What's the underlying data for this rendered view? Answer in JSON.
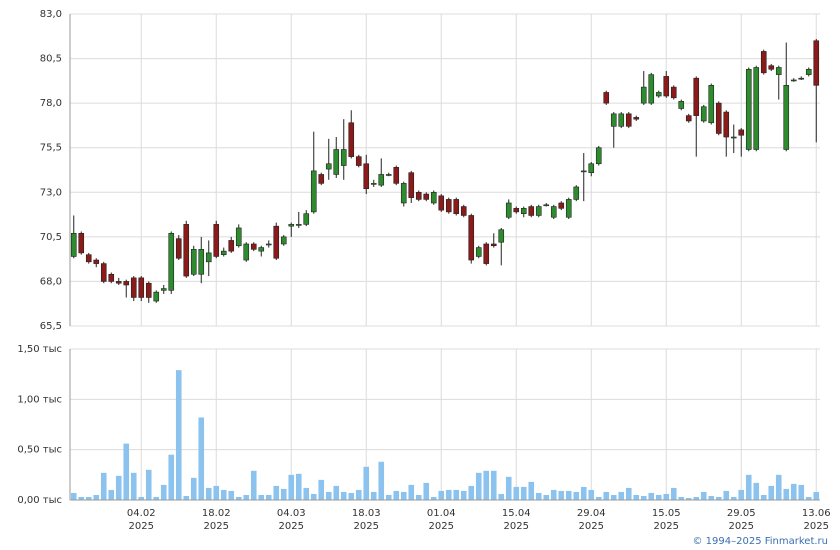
{
  "chart_data": [
    {
      "type": "candlestick",
      "up_color": "#2e8b2e",
      "down_color": "#8b1a1a",
      "open": [
        69.4,
        70.7,
        69.5,
        69.2,
        69.0,
        68.4,
        68.0,
        68.0,
        68.2,
        68.2,
        67.9,
        66.9,
        67.5,
        67.5,
        70.4,
        71.2,
        68.4,
        68.4,
        69.1,
        71.2,
        69.5,
        70.3,
        70.0,
        69.2,
        70.1,
        69.7,
        70.1,
        71.1,
        70.1,
        71.1,
        71.2,
        71.2,
        71.9,
        74.0,
        74.3,
        74.0,
        74.5,
        76.9,
        75.0,
        74.6,
        73.5,
        73.4,
        74.0,
        74.4,
        72.4,
        74.1,
        73.0,
        72.9,
        72.4,
        72.8,
        72.6,
        72.6,
        72.2,
        71.7,
        69.4,
        70.1,
        70.1,
        70.2,
        71.6,
        72.1,
        71.8,
        72.2,
        71.7,
        72.3,
        71.6,
        72.4,
        71.6,
        72.6,
        74.2,
        74.1,
        74.6,
        78.6,
        76.7,
        76.7,
        77.4,
        77.2,
        78.0,
        78.0,
        78.4,
        79.5,
        78.9,
        77.7,
        77.3,
        79.4,
        77.0,
        76.9,
        78.0,
        77.5,
        76.1,
        76.5,
        75.4,
        75.4,
        80.9,
        80.1,
        79.6,
        75.4,
        79.3,
        79.4,
        79.6,
        81.5
      ],
      "high": [
        71.7,
        70.8,
        69.6,
        69.3,
        69.1,
        68.5,
        68.2,
        68.1,
        68.3,
        68.3,
        68.0,
        67.5,
        67.8,
        70.8,
        70.6,
        71.4,
        70.0,
        70.5,
        70.3,
        71.4,
        69.9,
        70.5,
        71.2,
        70.2,
        70.2,
        70.0,
        70.3,
        71.3,
        70.6,
        71.3,
        71.9,
        72.0,
        76.4,
        74.1,
        76.0,
        76.1,
        77.1,
        77.6,
        75.1,
        75.1,
        73.7,
        74.9,
        74.1,
        74.5,
        73.6,
        74.2,
        73.1,
        73.0,
        73.1,
        72.9,
        72.7,
        72.7,
        72.3,
        71.8,
        70.0,
        70.2,
        70.7,
        71.0,
        72.6,
        72.2,
        72.2,
        72.3,
        72.3,
        72.4,
        72.3,
        72.5,
        72.7,
        73.4,
        75.2,
        74.7,
        75.6,
        78.7,
        77.5,
        77.5,
        77.5,
        77.3,
        79.8,
        79.7,
        78.7,
        79.8,
        79.0,
        78.2,
        77.4,
        79.5,
        77.9,
        79.1,
        78.1,
        77.6,
        76.8,
        76.6,
        80.0,
        80.1,
        81.0,
        80.2,
        80.1,
        81.4,
        79.4,
        79.5,
        80.0,
        81.6
      ],
      "low": [
        69.3,
        69.5,
        69.0,
        68.8,
        67.9,
        67.9,
        67.8,
        67.1,
        66.9,
        66.9,
        66.8,
        66.8,
        67.3,
        67.3,
        69.2,
        68.2,
        68.3,
        67.9,
        68.3,
        69.3,
        69.4,
        69.6,
        69.9,
        69.1,
        69.7,
        69.4,
        69.9,
        69.2,
        70.0,
        70.5,
        71.0,
        71.1,
        71.8,
        73.4,
        73.7,
        73.8,
        73.7,
        74.9,
        74.4,
        72.9,
        73.3,
        73.3,
        73.9,
        73.4,
        72.2,
        72.4,
        72.5,
        72.5,
        72.3,
        71.9,
        71.8,
        71.7,
        71.6,
        69.0,
        69.3,
        68.9,
        69.9,
        68.9,
        71.5,
        71.8,
        71.6,
        71.6,
        71.6,
        72.2,
        71.5,
        72.0,
        71.5,
        72.5,
        72.5,
        73.9,
        74.5,
        77.9,
        75.5,
        76.6,
        76.6,
        77.0,
        77.9,
        77.9,
        78.3,
        78.3,
        78.2,
        77.6,
        76.9,
        75.0,
        76.9,
        76.8,
        76.2,
        75.0,
        75.2,
        75.0,
        75.3,
        75.3,
        79.6,
        79.8,
        78.2,
        75.3,
        79.2,
        79.3,
        79.5,
        75.8
      ],
      "close": [
        70.7,
        69.6,
        69.1,
        69.0,
        68.0,
        68.0,
        67.9,
        67.8,
        67.1,
        67.1,
        67.1,
        67.4,
        67.6,
        70.7,
        69.3,
        68.3,
        69.8,
        69.8,
        69.6,
        69.4,
        69.7,
        69.7,
        71.0,
        70.1,
        69.8,
        69.9,
        70.1,
        69.3,
        70.5,
        71.2,
        71.2,
        71.8,
        74.2,
        73.5,
        74.6,
        75.4,
        75.4,
        75.0,
        74.5,
        73.2,
        73.5,
        74.0,
        74.0,
        73.5,
        73.5,
        72.7,
        72.6,
        72.6,
        73.0,
        72.0,
        71.9,
        71.8,
        71.7,
        69.2,
        69.9,
        69.0,
        70.0,
        70.9,
        72.4,
        71.9,
        72.1,
        71.7,
        72.2,
        72.3,
        72.2,
        72.1,
        72.6,
        73.3,
        74.2,
        74.6,
        75.5,
        78.0,
        77.4,
        77.4,
        76.7,
        77.1,
        78.9,
        79.6,
        78.6,
        78.4,
        78.3,
        78.1,
        77.0,
        77.3,
        77.8,
        79.0,
        76.3,
        76.1,
        76.1,
        76.2,
        79.9,
        80.0,
        79.7,
        79.9,
        80.0,
        79.0,
        79.3,
        79.4,
        79.9,
        79.0
      ],
      "ylim": [
        65.5,
        83.0
      ],
      "yticks": [
        {
          "value": 65.5,
          "label": "65,5"
        },
        {
          "value": 68,
          "label": "68,0"
        },
        {
          "value": 70.5,
          "label": "70,5"
        },
        {
          "value": 73,
          "label": "73,0"
        },
        {
          "value": 75.5,
          "label": "75,5"
        },
        {
          "value": 78,
          "label": "78,0"
        },
        {
          "value": 80.5,
          "label": "80,5"
        },
        {
          "value": 83,
          "label": "83,0"
        }
      ],
      "grid": true
    },
    {
      "type": "bar",
      "color": "#8cc3ee",
      "categories": [
        null,
        null,
        null,
        null,
        null,
        null,
        null,
        null,
        null,
        [
          "04.02",
          "2025"
        ],
        null,
        null,
        null,
        null,
        null,
        null,
        null,
        null,
        null,
        [
          "18.02",
          "2025"
        ],
        null,
        null,
        null,
        null,
        null,
        null,
        null,
        null,
        null,
        [
          "04.03",
          "2025"
        ],
        null,
        null,
        null,
        null,
        null,
        null,
        null,
        null,
        null,
        [
          "18.03",
          "2025"
        ],
        null,
        null,
        null,
        null,
        null,
        null,
        null,
        null,
        null,
        [
          "01.04",
          "2025"
        ],
        null,
        null,
        null,
        null,
        null,
        null,
        null,
        null,
        null,
        [
          "15.04",
          "2025"
        ],
        null,
        null,
        null,
        null,
        null,
        null,
        null,
        null,
        null,
        [
          "29.04",
          "2025"
        ],
        null,
        null,
        null,
        null,
        null,
        null,
        null,
        null,
        null,
        [
          "15.05",
          "2025"
        ],
        null,
        null,
        null,
        null,
        null,
        null,
        null,
        null,
        null,
        [
          "29.05",
          "2025"
        ],
        null,
        null,
        null,
        null,
        null,
        null,
        null,
        null,
        null,
        [
          "13.06",
          "2025"
        ]
      ],
      "values": [
        0.07,
        0.03,
        0.03,
        0.05,
        0.27,
        0.1,
        0.24,
        0.56,
        0.27,
        0.03,
        0.3,
        0.03,
        0.15,
        0.45,
        1.29,
        0.04,
        0.22,
        0.82,
        0.12,
        0.14,
        0.1,
        0.09,
        0.03,
        0.05,
        0.29,
        0.05,
        0.05,
        0.14,
        0.11,
        0.25,
        0.26,
        0.12,
        0.06,
        0.2,
        0.08,
        0.14,
        0.08,
        0.07,
        0.1,
        0.33,
        0.08,
        0.38,
        0.05,
        0.09,
        0.08,
        0.15,
        0.05,
        0.17,
        0.03,
        0.09,
        0.1,
        0.1,
        0.09,
        0.14,
        0.27,
        0.29,
        0.29,
        0.06,
        0.23,
        0.13,
        0.13,
        0.18,
        0.07,
        0.05,
        0.1,
        0.09,
        0.09,
        0.08,
        0.13,
        0.1,
        0.03,
        0.08,
        0.05,
        0.08,
        0.12,
        0.05,
        0.04,
        0.07,
        0.05,
        0.06,
        0.12,
        0.03,
        0.02,
        0.03,
        0.08,
        0.04,
        0.03,
        0.09,
        0.03,
        0.1,
        0.25,
        0.17,
        0.05,
        0.14,
        0.25,
        0.11,
        0.16,
        0.15,
        0.03,
        0.08
      ],
      "ylim": [
        0,
        1.5
      ],
      "yticks": [
        {
          "value": 0,
          "label": "0,00 тыс"
        },
        {
          "value": 0.5,
          "label": "0,50 тыс"
        },
        {
          "value": 1,
          "label": "1,00 тыс"
        },
        {
          "value": 1.5,
          "label": "1,50 тыс"
        }
      ],
      "grid": true
    }
  ],
  "footer": "© 1994–2025 Finmarket.ru"
}
